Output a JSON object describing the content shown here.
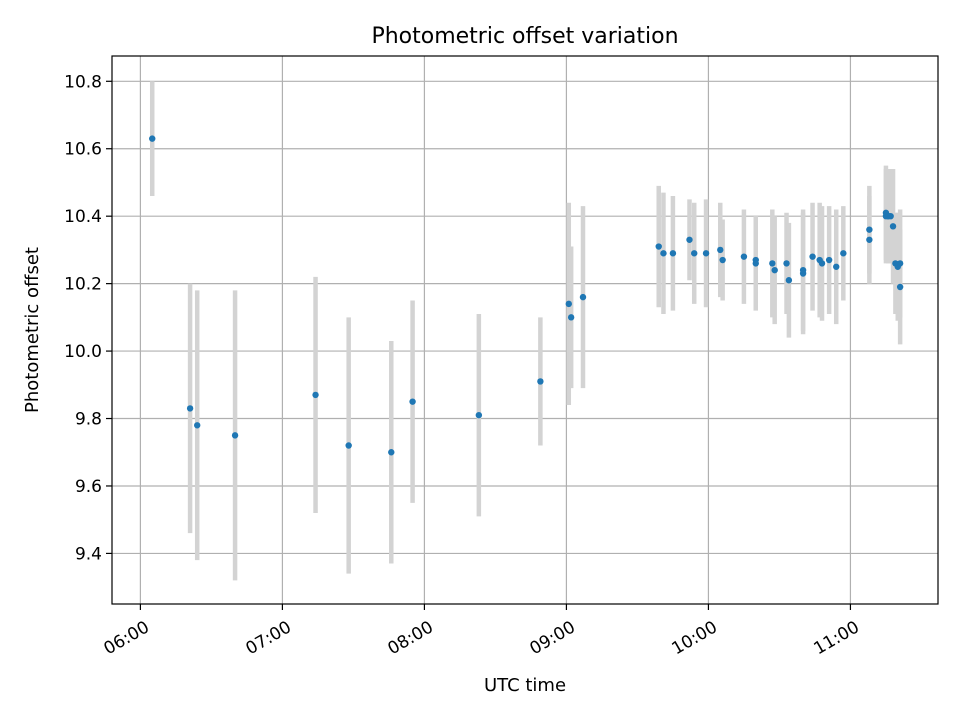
{
  "chart_data": {
    "type": "scatter",
    "title": "Photometric offset variation",
    "xlabel": "UTC time",
    "ylabel": "Photometric offset",
    "x_axis_type": "time",
    "xlim": [
      "05:48",
      "11:37"
    ],
    "ylim": [
      9.25,
      10.875
    ],
    "x_ticks": [
      "06:00",
      "07:00",
      "08:00",
      "09:00",
      "10:00",
      "11:00"
    ],
    "y_ticks": [
      9.4,
      9.6,
      9.8,
      10.0,
      10.2,
      10.4,
      10.6,
      10.8
    ],
    "y_tick_labels": [
      "9.4",
      "9.6",
      "9.8",
      "10.0",
      "10.2",
      "10.4",
      "10.6",
      "10.8"
    ],
    "grid": true,
    "x_tick_label_rotation": "rotated",
    "colors": {
      "point": "#1f77b4",
      "errorbar": "#d3d3d3"
    },
    "series": [
      {
        "x": [
          "06:05",
          "06:21",
          "06:24",
          "06:40",
          "07:14",
          "07:28",
          "07:46",
          "07:55",
          "08:23",
          "08:49",
          "09:01",
          "09:02",
          "09:07",
          "09:39",
          "09:41",
          "09:45",
          "09:52",
          "09:54",
          "09:59",
          "10:05",
          "10:06",
          "10:15",
          "10:20",
          "10:20",
          "10:27",
          "10:28",
          "10:33",
          "10:34",
          "10:40",
          "10:40",
          "10:44",
          "10:47",
          "10:48",
          "10:51",
          "10:54",
          "10:57",
          "11:08",
          "11:08",
          "11:15",
          "11:15",
          "11:16",
          "11:16",
          "11:17",
          "11:18",
          "11:19",
          "11:20",
          "11:21",
          "11:21"
        ],
        "y": [
          10.63,
          9.83,
          9.78,
          9.75,
          9.87,
          9.72,
          9.7,
          9.85,
          9.81,
          9.91,
          10.14,
          10.1,
          10.16,
          10.31,
          10.29,
          10.29,
          10.33,
          10.29,
          10.29,
          10.3,
          10.27,
          10.28,
          10.27,
          10.26,
          10.26,
          10.24,
          10.26,
          10.21,
          10.24,
          10.23,
          10.28,
          10.27,
          10.26,
          10.27,
          10.25,
          10.29,
          10.33,
          10.36,
          10.4,
          10.41,
          10.4,
          10.4,
          10.4,
          10.37,
          10.26,
          10.25,
          10.26,
          10.19
        ],
        "yerr": [
          0.17,
          0.37,
          0.4,
          0.43,
          0.35,
          0.38,
          0.33,
          0.3,
          0.3,
          0.19,
          0.3,
          0.21,
          0.27,
          0.18,
          0.18,
          0.17,
          0.12,
          0.15,
          0.16,
          0.14,
          0.12,
          0.14,
          0.13,
          0.14,
          0.16,
          0.16,
          0.15,
          0.17,
          0.18,
          0.18,
          0.16,
          0.17,
          0.17,
          0.16,
          0.17,
          0.14,
          0.13,
          0.13,
          0.14,
          0.14,
          0.14,
          0.14,
          0.14,
          0.17,
          0.15,
          0.16,
          0.16,
          0.17
        ]
      }
    ]
  }
}
